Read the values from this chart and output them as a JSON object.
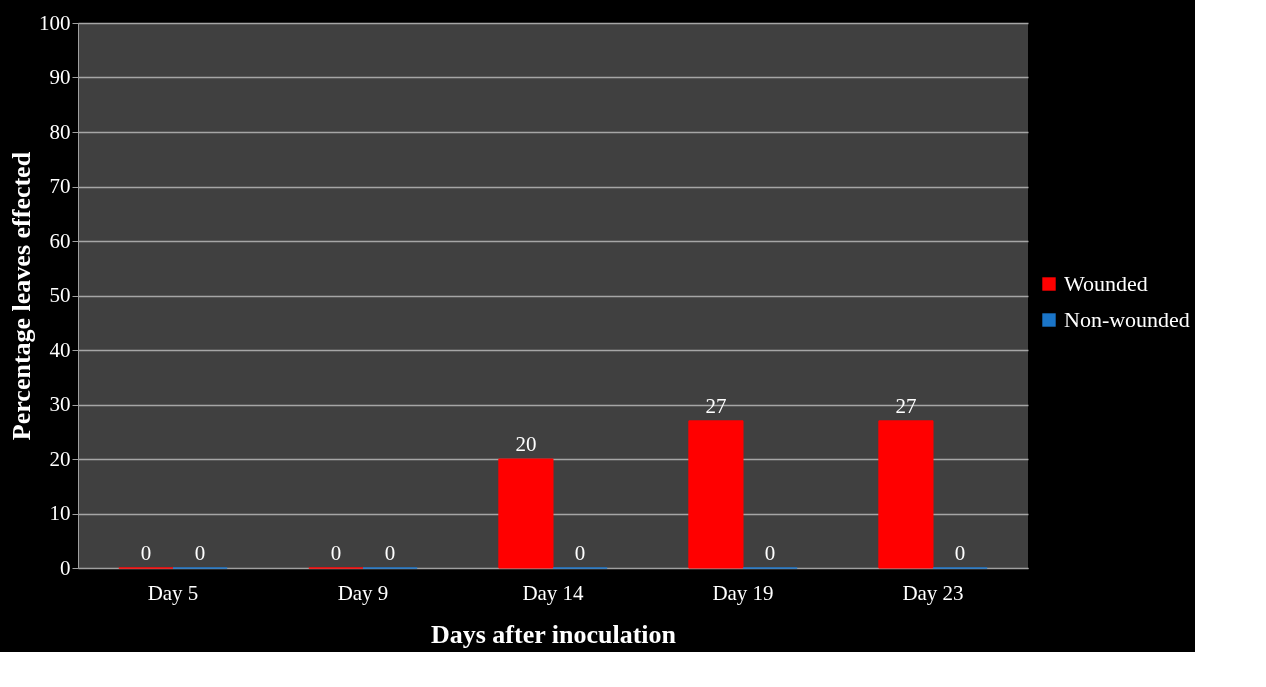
{
  "chart_data": {
    "type": "bar",
    "xlabel": "Days after inoculation",
    "ylabel": "Percentage leaves effected",
    "categories": [
      "Day 5",
      "Day 9",
      "Day 14",
      "Day 19",
      "Day 23"
    ],
    "series": [
      {
        "name": "Wounded",
        "color": "#ff0000",
        "values": [
          0,
          0,
          20,
          27,
          27
        ]
      },
      {
        "name": "Non-wounded",
        "color": "#1a75c8",
        "values": [
          0,
          0,
          0,
          0,
          0
        ]
      }
    ],
    "ylim": [
      0,
      100
    ],
    "yticks": [
      0,
      10,
      20,
      30,
      40,
      50,
      60,
      70,
      80,
      90,
      100
    ],
    "grid": "y",
    "legend": "right",
    "data_labels": true
  }
}
